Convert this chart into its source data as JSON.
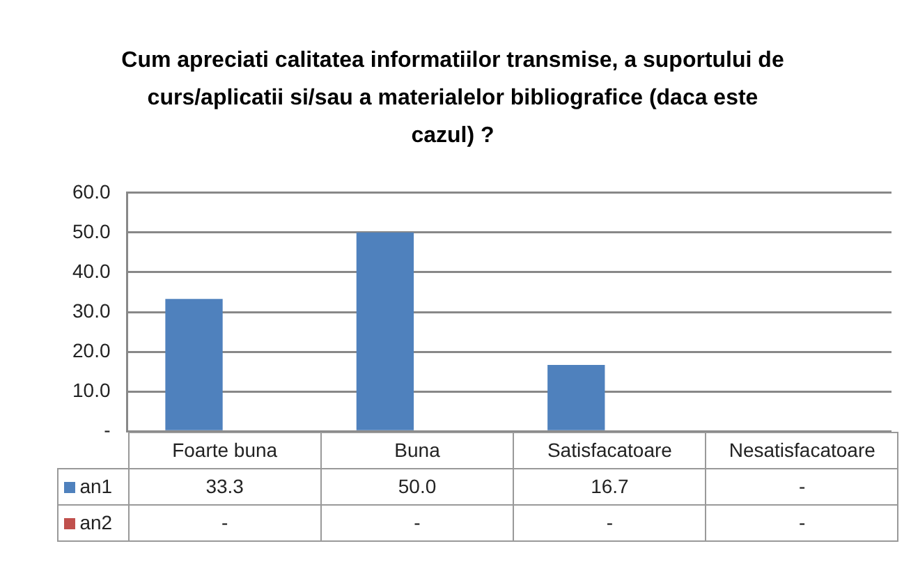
{
  "chart_data": {
    "type": "bar",
    "title": "Cum apreciati calitatea informatiilor transmise, a suportului de curs/aplicatii si/sau a materialelor bibliografice (daca este cazul) ?",
    "categories": [
      "Foarte buna",
      "Buna",
      "Satisfacatoare",
      "Nesatisfacatoare"
    ],
    "series": [
      {
        "name": "an1",
        "color": "#4f81bd",
        "values": [
          33.3,
          50.0,
          16.7,
          null
        ],
        "value_labels": [
          "33.3",
          "50.0",
          "16.7",
          "-"
        ]
      },
      {
        "name": "an2",
        "color": "#c0504d",
        "values": [
          null,
          null,
          null,
          null
        ],
        "value_labels": [
          "-",
          "-",
          "-",
          "-"
        ]
      }
    ],
    "ylim": [
      0,
      60
    ],
    "yticks": [
      {
        "value": 0,
        "label": "-"
      },
      {
        "value": 10,
        "label": "10.0"
      },
      {
        "value": 20,
        "label": "20.0"
      },
      {
        "value": 30,
        "label": "30.0"
      },
      {
        "value": 40,
        "label": "40.0"
      },
      {
        "value": 50,
        "label": "50.0"
      },
      {
        "value": 60,
        "label": "60.0"
      }
    ],
    "grid": "y",
    "legend": "bottom"
  }
}
